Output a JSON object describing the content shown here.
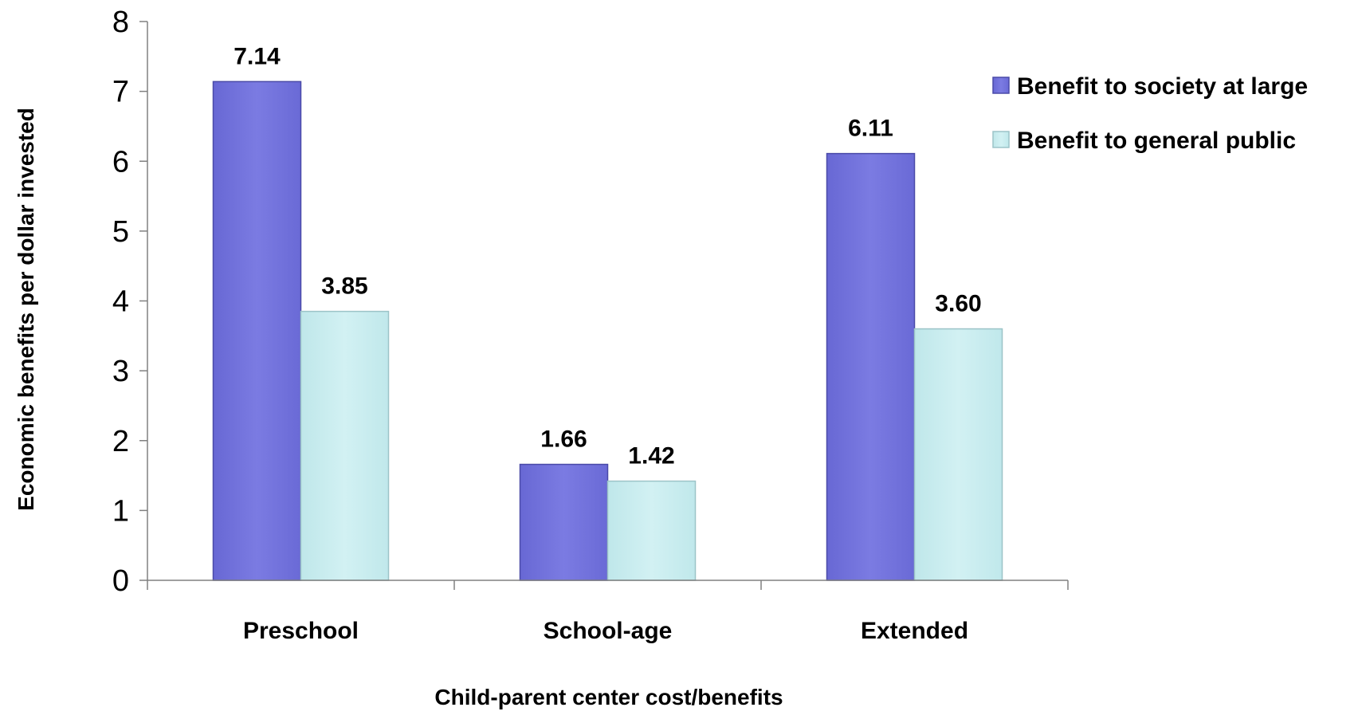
{
  "chart_data": {
    "type": "bar",
    "title": "",
    "xlabel": "Child-parent center cost/benefits",
    "ylabel": "Economic benefits per dollar invested",
    "categories": [
      "Preschool",
      "School-age",
      "Extended"
    ],
    "series": [
      {
        "name": "Benefit to society at large",
        "values": [
          7.14,
          1.66,
          6.11
        ],
        "labels": [
          "7.14",
          "1.66",
          "6.11"
        ],
        "color": "#7373dd"
      },
      {
        "name": "Benefit to general public",
        "values": [
          3.85,
          1.42,
          3.6
        ],
        "labels": [
          "3.85",
          "1.42",
          "3.60"
        ],
        "color": "#c6ecef"
      }
    ],
    "ylim": [
      0,
      8
    ],
    "yticks": [
      "0",
      "1",
      "2",
      "3",
      "4",
      "5",
      "6",
      "7",
      "8"
    ],
    "grid": false,
    "legend_position": "top-right"
  }
}
